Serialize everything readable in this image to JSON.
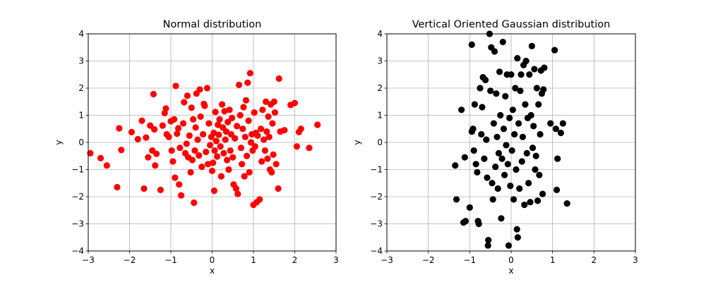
{
  "chart_data": [
    {
      "type": "scatter",
      "title": "Normal distribution",
      "xlabel": "x",
      "ylabel": "y",
      "xlim": [
        -3,
        3
      ],
      "ylim": [
        -4,
        4
      ],
      "xticks": [
        -3,
        -2,
        -1,
        0,
        1,
        2,
        3
      ],
      "yticks": [
        -4,
        -3,
        -2,
        -1,
        0,
        1,
        2,
        3,
        4
      ],
      "grid": true,
      "marker_color": "#ff0000",
      "series": [
        {
          "points": [
            [
              -2.95,
              -0.4
            ],
            [
              -2.7,
              -0.58
            ],
            [
              -2.55,
              -0.85
            ],
            [
              -2.3,
              -1.65
            ],
            [
              -2.25,
              0.52
            ],
            [
              -2.2,
              -0.28
            ],
            [
              -1.95,
              0.38
            ],
            [
              -1.8,
              0.12
            ],
            [
              -1.7,
              0.8
            ],
            [
              -1.65,
              -1.7
            ],
            [
              -1.6,
              0.18
            ],
            [
              -1.55,
              -0.55
            ],
            [
              -1.5,
              0.62
            ],
            [
              -1.45,
              -0.3
            ],
            [
              -1.42,
              1.78
            ],
            [
              -1.4,
              0.48
            ],
            [
              -1.38,
              -0.85
            ],
            [
              -1.35,
              -0.42
            ],
            [
              -1.25,
              -1.75
            ],
            [
              -1.2,
              0.62
            ],
            [
              -1.15,
              1.08
            ],
            [
              -1.12,
              1.25
            ],
            [
              -1.1,
              0.3
            ],
            [
              -1.05,
              0.2
            ],
            [
              -1.0,
              0.78
            ],
            [
              -0.98,
              -0.3
            ],
            [
              -0.95,
              -0.7
            ],
            [
              -0.92,
              0.85
            ],
            [
              -0.9,
              -1.3
            ],
            [
              -0.88,
              2.08
            ],
            [
              -0.85,
              0.32
            ],
            [
              -0.82,
              0.52
            ],
            [
              -0.8,
              -1.55
            ],
            [
              -0.78,
              -0.2
            ],
            [
              -0.75,
              -1.95
            ],
            [
              -0.7,
              0.7
            ],
            [
              -0.68,
              1.48
            ],
            [
              -0.65,
              -0.4
            ],
            [
              -0.62,
              -0.05
            ],
            [
              -0.6,
              1.72
            ],
            [
              -0.58,
              -0.55
            ],
            [
              -0.55,
              0.25
            ],
            [
              -0.52,
              -1.1
            ],
            [
              -0.5,
              1.28
            ],
            [
              -0.48,
              -0.65
            ],
            [
              -0.46,
              0.85
            ],
            [
              -0.44,
              -2.22
            ],
            [
              -0.42,
              -0.3
            ],
            [
              -0.4,
              0.55
            ],
            [
              -0.38,
              1.8
            ],
            [
              -0.35,
              0.1
            ],
            [
              -0.32,
              -0.48
            ],
            [
              -0.3,
              1.95
            ],
            [
              -0.28,
              0.95
            ],
            [
              -0.25,
              -0.9
            ],
            [
              -0.22,
              0.3
            ],
            [
              -0.2,
              1.42
            ],
            [
              -0.18,
              1.35
            ],
            [
              -0.15,
              -0.35
            ],
            [
              -0.12,
              2.0
            ],
            [
              -0.1,
              -0.8
            ],
            [
              -0.08,
              0.7
            ],
            [
              -0.05,
              -0.1
            ],
            [
              -0.02,
              0.2
            ],
            [
              0.0,
              -1.05
            ],
            [
              0.02,
              -0.75
            ],
            [
              0.04,
              0.35
            ],
            [
              0.05,
              -1.78
            ],
            [
              0.06,
              -0.3
            ],
            [
              0.08,
              1.12
            ],
            [
              0.1,
              0.05
            ],
            [
              0.12,
              -0.52
            ],
            [
              0.14,
              0.65
            ],
            [
              0.16,
              0.28
            ],
            [
              0.18,
              0.85
            ],
            [
              0.2,
              -0.15
            ],
            [
              0.22,
              -1.25
            ],
            [
              0.24,
              1.4
            ],
            [
              0.26,
              0.55
            ],
            [
              0.28,
              -0.4
            ],
            [
              0.3,
              1.15
            ],
            [
              0.32,
              0.1
            ],
            [
              0.34,
              0.4
            ],
            [
              0.36,
              -0.65
            ],
            [
              0.38,
              0.75
            ],
            [
              0.4,
              -1.0
            ],
            [
              0.42,
              1.2
            ],
            [
              0.44,
              -0.3
            ],
            [
              0.46,
              0.3
            ],
            [
              0.48,
              0.9
            ],
            [
              0.5,
              -0.55
            ],
            [
              0.52,
              -1.55
            ],
            [
              0.55,
              0.15
            ],
            [
              0.58,
              -1.7
            ],
            [
              0.6,
              0.6
            ],
            [
              0.62,
              -1.9
            ],
            [
              0.65,
              2.12
            ],
            [
              0.68,
              1.0
            ],
            [
              0.7,
              -0.2
            ],
            [
              0.72,
              -0.8
            ],
            [
              0.74,
              0.5
            ],
            [
              0.76,
              1.3
            ],
            [
              0.78,
              -1.25
            ],
            [
              0.8,
              0.2
            ],
            [
              0.82,
              1.55
            ],
            [
              0.84,
              -0.5
            ],
            [
              0.86,
              2.2
            ],
            [
              0.88,
              0.8
            ],
            [
              0.9,
              -1.1
            ],
            [
              0.92,
              2.55
            ],
            [
              0.94,
              0.0
            ],
            [
              0.96,
              0.3
            ],
            [
              0.98,
              -0.3
            ],
            [
              1.0,
              -2.3
            ],
            [
              1.02,
              1.1
            ],
            [
              1.04,
              -0.15
            ],
            [
              1.06,
              0.35
            ],
            [
              1.08,
              -2.2
            ],
            [
              1.1,
              0.25
            ],
            [
              1.15,
              -2.1
            ],
            [
              1.18,
              0.5
            ],
            [
              1.2,
              -0.7
            ],
            [
              1.22,
              1.2
            ],
            [
              1.25,
              0.1
            ],
            [
              1.28,
              -0.3
            ],
            [
              1.3,
              1.5
            ],
            [
              1.32,
              0.4
            ],
            [
              1.34,
              -0.6
            ],
            [
              1.36,
              0.95
            ],
            [
              1.38,
              0.2
            ],
            [
              1.4,
              -1.0
            ],
            [
              1.42,
              1.4
            ],
            [
              1.44,
              -1.1
            ],
            [
              1.46,
              0.7
            ],
            [
              1.48,
              -0.45
            ],
            [
              1.5,
              1.5
            ],
            [
              1.52,
              1.1
            ],
            [
              1.55,
              -0.8
            ],
            [
              1.6,
              -1.7
            ],
            [
              1.62,
              2.35
            ],
            [
              1.65,
              0.4
            ],
            [
              1.75,
              0.45
            ],
            [
              1.9,
              1.38
            ],
            [
              2.0,
              1.45
            ],
            [
              2.05,
              -0.15
            ],
            [
              2.1,
              0.38
            ],
            [
              2.15,
              0.5
            ],
            [
              2.35,
              -0.2
            ],
            [
              2.55,
              0.65
            ]
          ]
        }
      ]
    },
    {
      "type": "scatter",
      "title": "Vertical Oriented Gaussian distribution",
      "xlabel": "x",
      "ylabel": "y",
      "xlim": [
        -3,
        3
      ],
      "ylim": [
        -4,
        4
      ],
      "xticks": [
        -3,
        -2,
        -1,
        0,
        1,
        2,
        3
      ],
      "yticks": [
        -4,
        -3,
        -2,
        -1,
        0,
        1,
        2,
        3,
        4
      ],
      "grid": true,
      "marker_color": "#000000",
      "series": [
        {
          "points": [
            [
              -1.35,
              -0.85
            ],
            [
              -1.32,
              -2.1
            ],
            [
              -1.2,
              1.2
            ],
            [
              -1.15,
              -2.95
            ],
            [
              -1.12,
              -0.55
            ],
            [
              -1.1,
              -2.9
            ],
            [
              -1.0,
              -2.4
            ],
            [
              -0.95,
              3.6
            ],
            [
              -0.95,
              0.4
            ],
            [
              -0.92,
              0.5
            ],
            [
              -0.9,
              -0.3
            ],
            [
              -0.88,
              1.4
            ],
            [
              -0.85,
              -0.8
            ],
            [
              -0.82,
              -1.1
            ],
            [
              -0.8,
              -2.9
            ],
            [
              -0.78,
              -3.0
            ],
            [
              -0.75,
              2.0
            ],
            [
              -0.72,
              0.3
            ],
            [
              -0.7,
              1.3
            ],
            [
              -0.68,
              2.4
            ],
            [
              -0.65,
              -0.6
            ],
            [
              -0.62,
              2.3
            ],
            [
              -0.6,
              0.1
            ],
            [
              -0.58,
              -1.3
            ],
            [
              -0.56,
              -3.8
            ],
            [
              -0.55,
              -3.6
            ],
            [
              -0.52,
              4.0
            ],
            [
              -0.5,
              1.9
            ],
            [
              -0.48,
              3.5
            ],
            [
              -0.46,
              -1.5
            ],
            [
              -0.44,
              -2.1
            ],
            [
              -0.42,
              0.7
            ],
            [
              -0.4,
              3.35
            ],
            [
              -0.38,
              -0.9
            ],
            [
              -0.36,
              1.8
            ],
            [
              -0.34,
              0.2
            ],
            [
              -0.32,
              -1.7
            ],
            [
              -0.3,
              -0.4
            ],
            [
              -0.28,
              2.6
            ],
            [
              -0.26,
              1.0
            ],
            [
              -0.24,
              -2.8
            ],
            [
              -0.22,
              -0.6
            ],
            [
              -0.2,
              3.7
            ],
            [
              -0.18,
              0.5
            ],
            [
              -0.16,
              -1.2
            ],
            [
              -0.14,
              1.7
            ],
            [
              -0.12,
              -0.1
            ],
            [
              -0.1,
              2.5
            ],
            [
              -0.08,
              -0.8
            ],
            [
              -0.06,
              -3.8
            ],
            [
              -0.04,
              0.9
            ],
            [
              -0.02,
              -1.6
            ],
            [
              0.0,
              2.5
            ],
            [
              0.02,
              -0.3
            ],
            [
              0.04,
              1.2
            ],
            [
              0.06,
              -2.1
            ],
            [
              0.08,
              0.3
            ],
            [
              0.1,
              2.0
            ],
            [
              0.12,
              -1.0
            ],
            [
              0.14,
              -3.2
            ],
            [
              0.15,
              3.1
            ],
            [
              0.16,
              -3.5
            ],
            [
              0.18,
              0.7
            ],
            [
              0.2,
              -1.7
            ],
            [
              0.22,
              1.9
            ],
            [
              0.24,
              2.5
            ],
            [
              0.26,
              -0.7
            ],
            [
              0.28,
              0.2
            ],
            [
              0.3,
              2.85
            ],
            [
              0.32,
              -2.3
            ],
            [
              0.34,
              1.4
            ],
            [
              0.36,
              3.0
            ],
            [
              0.38,
              -0.4
            ],
            [
              0.4,
              0.9
            ],
            [
              0.42,
              -1.5
            ],
            [
              0.44,
              2.5
            ],
            [
              0.46,
              -2.2
            ],
            [
              0.48,
              1.0
            ],
            [
              0.5,
              3.55
            ],
            [
              0.52,
              -0.2
            ],
            [
              0.54,
              0.6
            ],
            [
              0.56,
              2.7
            ],
            [
              0.58,
              -1.0
            ],
            [
              0.6,
              -0.5
            ],
            [
              0.62,
              2.0
            ],
            [
              0.64,
              -2.15
            ],
            [
              0.66,
              1.4
            ],
            [
              0.68,
              -1.2
            ],
            [
              0.7,
              0.3
            ],
            [
              0.72,
              2.65
            ],
            [
              0.74,
              1.8
            ],
            [
              0.76,
              -1.9
            ],
            [
              0.78,
              1.95
            ],
            [
              0.8,
              2.75
            ],
            [
              0.95,
              0.7
            ],
            [
              1.05,
              3.4
            ],
            [
              1.08,
              0.5
            ],
            [
              1.1,
              -1.75
            ],
            [
              1.12,
              -0.6
            ],
            [
              1.2,
              0.35
            ],
            [
              1.25,
              0.7
            ],
            [
              1.35,
              -2.25
            ]
          ]
        }
      ]
    }
  ]
}
